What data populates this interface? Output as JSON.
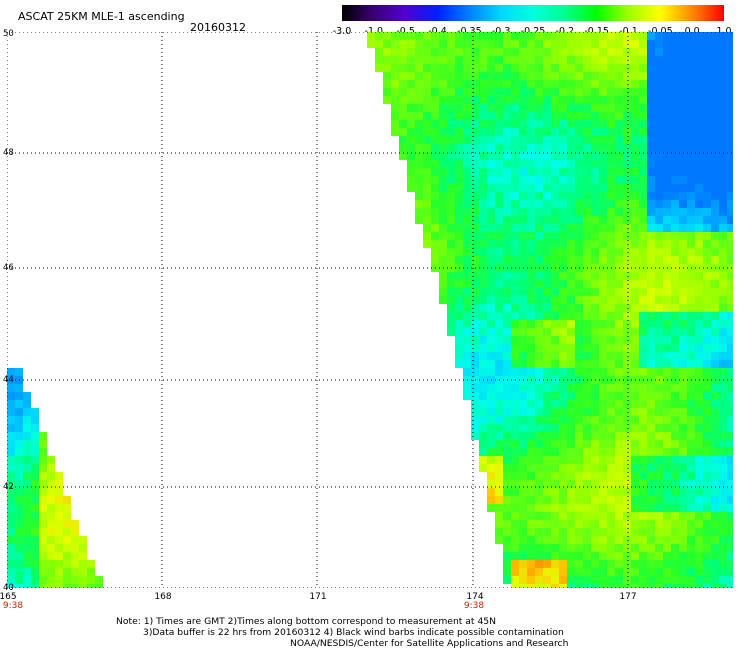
{
  "header": {
    "title": "ASCAT 25KM MLE-1 ascending",
    "date": "20160312"
  },
  "colorbar": {
    "ticks": [
      "-3.0",
      "-1.0",
      "-0.5",
      "-0.4",
      "-0.35",
      "-0.3",
      "-0.25",
      "-0.2",
      "-0.15",
      "-0.1",
      "-0.05",
      "0.0",
      "1.0"
    ],
    "colors": [
      "#000000",
      "#3a0078",
      "#5200d0",
      "#0020ff",
      "#0080ff",
      "#00d8ff",
      "#00ffdc",
      "#00ff90",
      "#00ff00",
      "#a0ff00",
      "#ffff00",
      "#ff8800",
      "#ff0000"
    ]
  },
  "map": {
    "lat_labels": [
      "50",
      "48",
      "46",
      "44",
      "42",
      "40"
    ],
    "lon_labels": [
      "165",
      "168",
      "171",
      "174",
      "177"
    ],
    "time_labels": [
      "9:38",
      "9:38"
    ]
  },
  "notes": {
    "line1": "Note: 1) Times are GMT 2)Times along bottom correspond to measurement at 45N",
    "line2": "3)Data buffer is 22 hrs from 20160312 4) Black wind barbs indicate possible contamination",
    "line3": "NOAA/NESDIS/Center for Satellite Applications and Research"
  }
}
